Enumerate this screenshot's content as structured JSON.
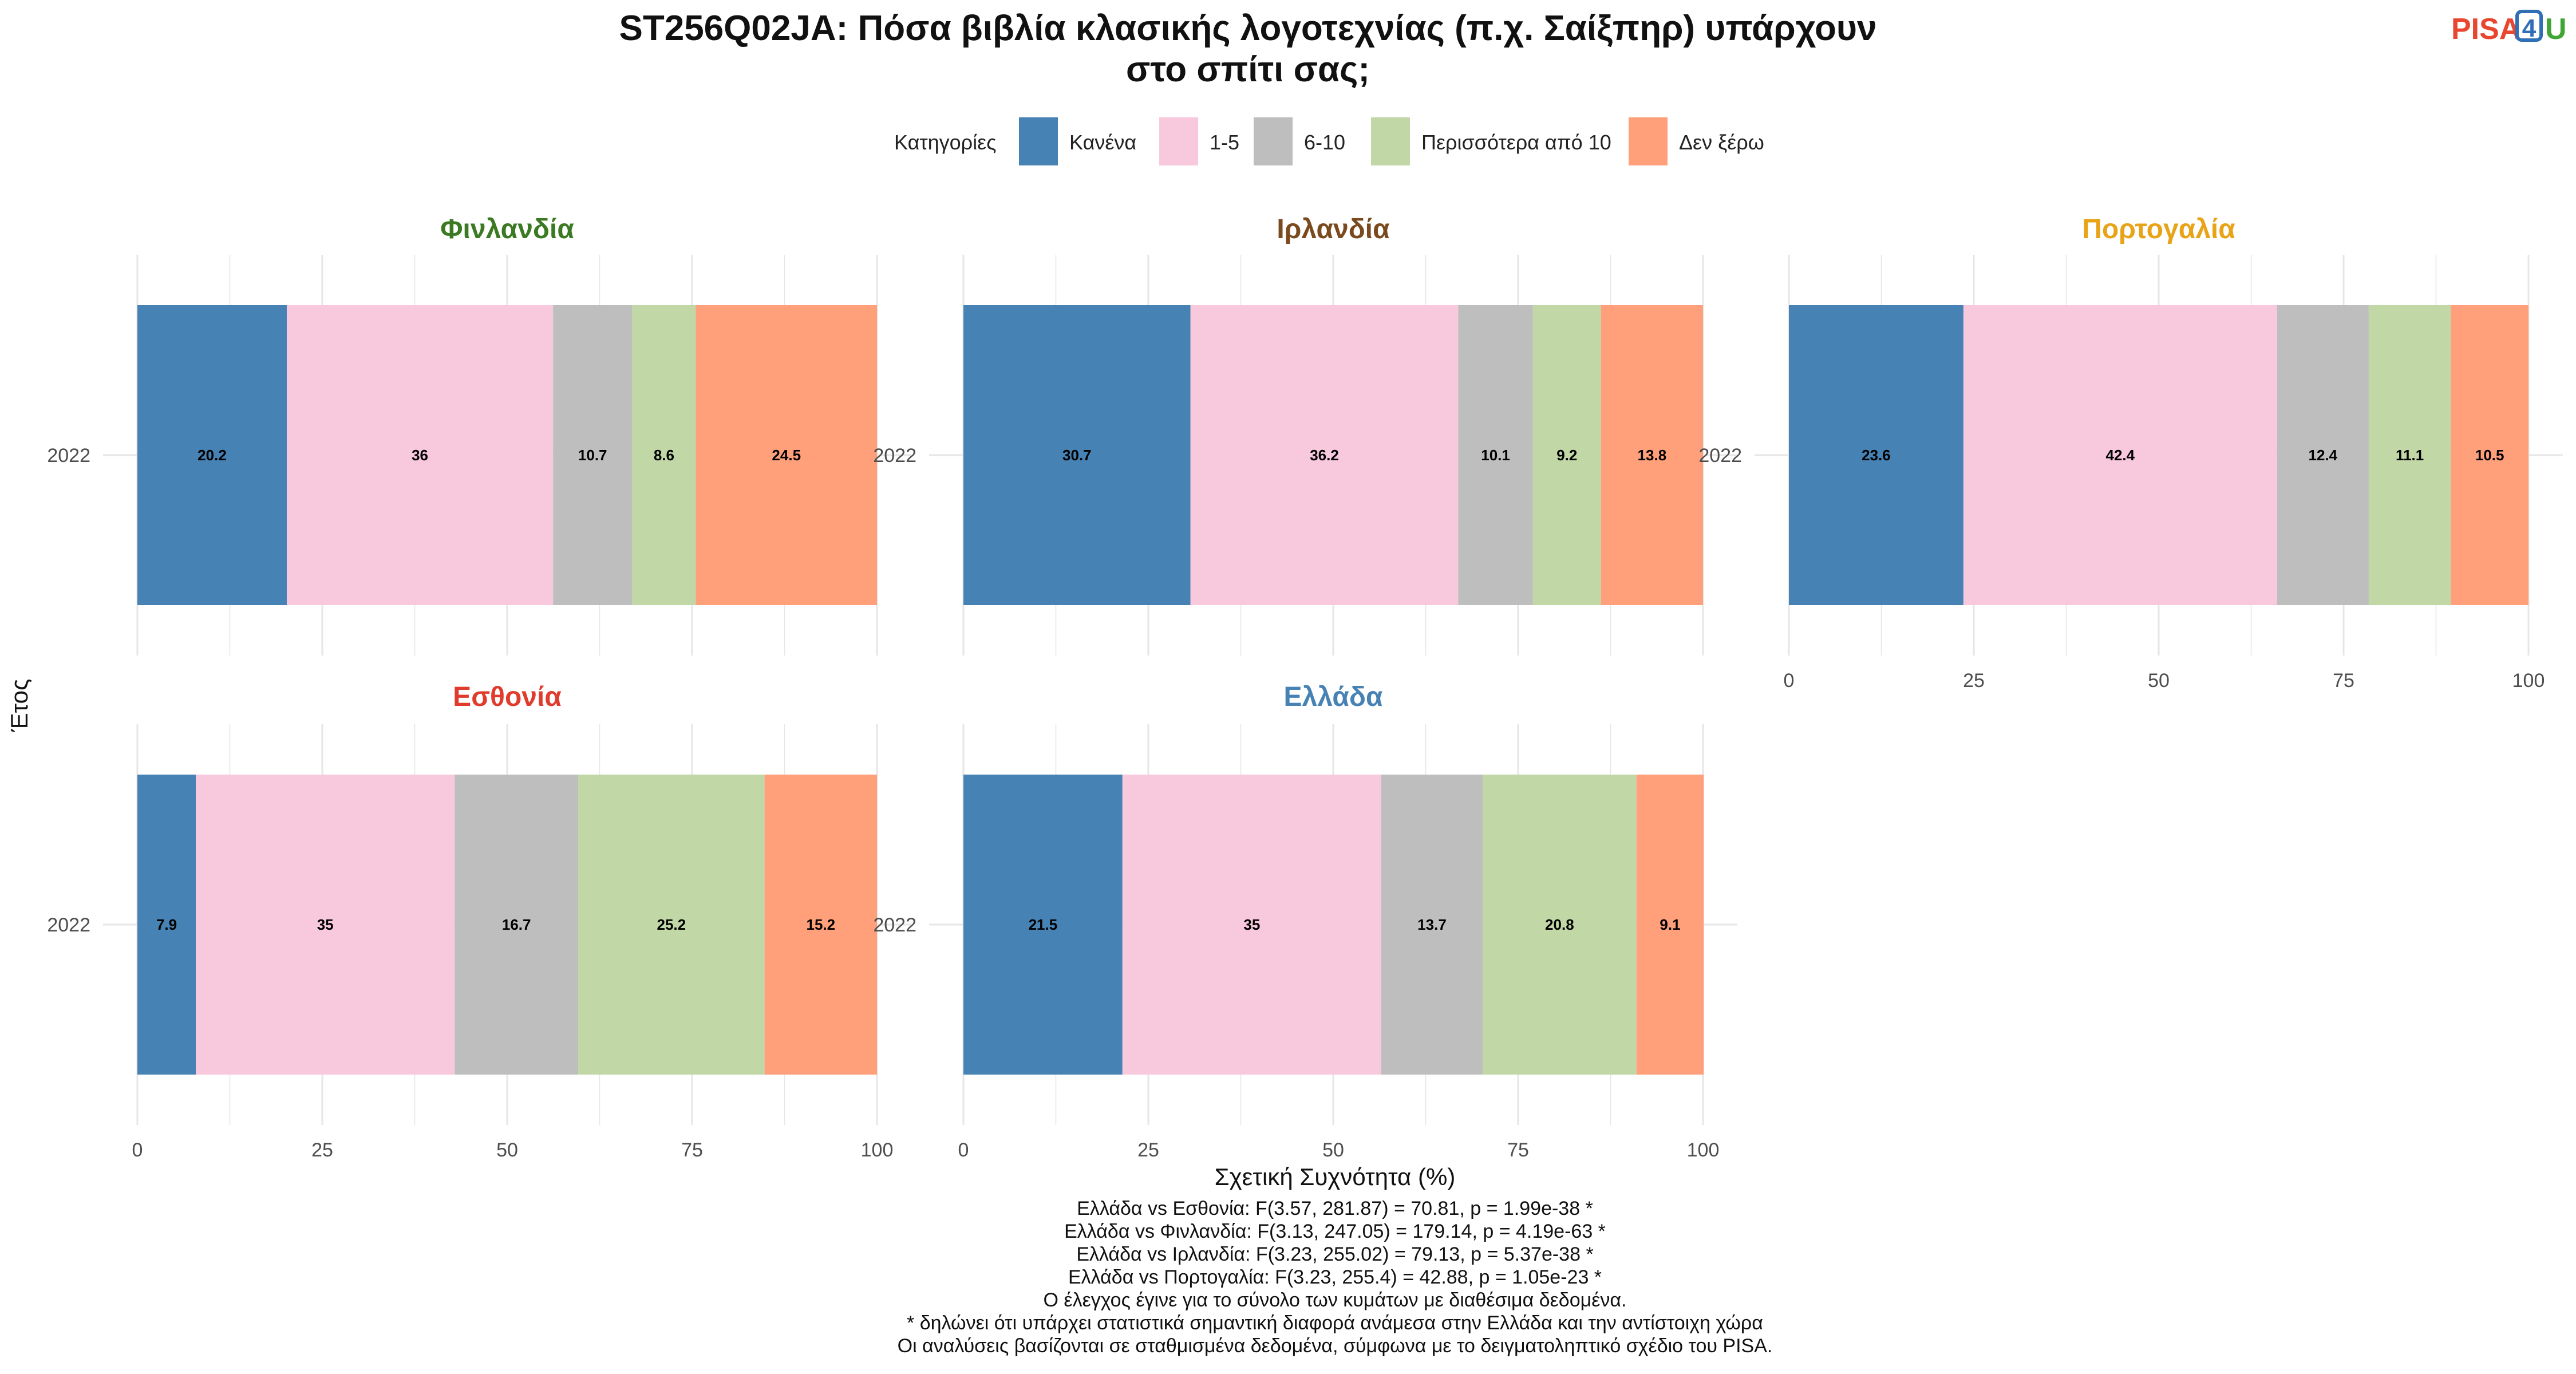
{
  "title_lines": [
    "ST256Q02JA: Πόσα βιβλία κλασικής λογοτεχνίας (π.χ. Σαίξπηρ) υπάρχουν",
    "στο σπίτι σας;"
  ],
  "logo": {
    "part1": "PISA",
    "part2": "4",
    "part3": "U",
    "colors": {
      "part1": "#E8462F",
      "part2": "#2F6FB5",
      "part3": "#3FA535"
    }
  },
  "legend": {
    "title": "Κατηγορίες",
    "items": [
      {
        "label": "Κανένα",
        "color": "#4682B4"
      },
      {
        "label": "1-5",
        "color": "#F8C8DC"
      },
      {
        "label": "6-10",
        "color": "#BEBEBE"
      },
      {
        "label": "Περισσότερα από 10",
        "color": "#C1D7A6"
      },
      {
        "label": "Δεν ξέρω",
        "color": "#FFA07A"
      }
    ]
  },
  "chart_data": {
    "type": "bar",
    "orientation": "horizontal-stacked",
    "xlabel": "Σχετική Συχνότητα (%)",
    "ylabel": "Έτος",
    "xlim": [
      0,
      100
    ],
    "xticks": [
      0,
      25,
      50,
      75,
      100
    ],
    "categories": [
      "Κανένα",
      "1-5",
      "6-10",
      "Περισσότερα από 10",
      "Δεν ξέρω"
    ],
    "panels": [
      {
        "name": "Φινλανδία",
        "title_color": "#3B7A23",
        "year": "2022",
        "values": [
          20.2,
          36,
          10.7,
          8.6,
          24.5
        ]
      },
      {
        "name": "Ιρλανδία",
        "title_color": "#7A4A1E",
        "year": "2022",
        "values": [
          30.7,
          36.2,
          10.1,
          9.2,
          13.8
        ]
      },
      {
        "name": "Πορτογαλία",
        "title_color": "#E8A317",
        "year": "2022",
        "values": [
          23.6,
          42.4,
          12.4,
          11.1,
          10.5
        ]
      },
      {
        "name": "Εσθονία",
        "title_color": "#E03C2D",
        "year": "2022",
        "values": [
          7.9,
          35,
          16.7,
          25.2,
          15.2
        ]
      },
      {
        "name": "Ελλάδα",
        "title_color": "#4682B4",
        "year": "2022",
        "values": [
          21.5,
          35,
          13.7,
          20.8,
          9.1
        ]
      }
    ]
  },
  "caption_lines": [
    "Ελλάδα vs Εσθονία: F(3.57, 281.87) = 70.81, p = 1.99e-38 *",
    "Ελλάδα vs Φινλανδία: F(3.13, 247.05) = 179.14, p = 4.19e-63 *",
    "Ελλάδα vs Ιρλανδία: F(3.23, 255.02) = 79.13, p = 5.37e-38 *",
    "Ελλάδα vs Πορτογαλία: F(3.23, 255.4) = 42.88, p = 1.05e-23 *",
    "Ο έλεγχος έγινε για το σύνολο των κυμάτων με διαθέσιμα δεδομένα.",
    "* δηλώνει ότι υπάρχει στατιστικά σημαντική διαφορά ανάμεσα στην Ελλάδα και την αντίστοιχη χώρα",
    "Οι αναλύσεις βασίζονται σε σταθμισμένα δεδομένα, σύμφωνα με το δειγματοληπτικό σχέδιο του PISA."
  ]
}
